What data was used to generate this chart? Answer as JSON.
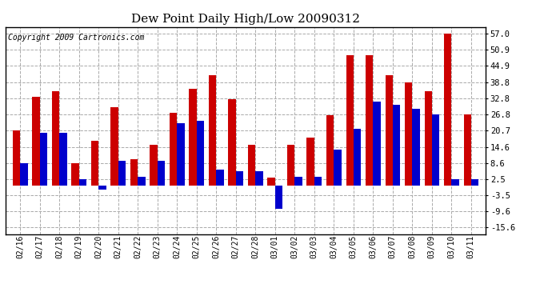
{
  "title": "Dew Point Daily High/Low 20090312",
  "copyright": "Copyright 2009 Cartronics.com",
  "yticks": [
    -15.6,
    -9.6,
    -3.5,
    2.5,
    8.6,
    14.6,
    20.7,
    26.8,
    32.8,
    38.8,
    44.9,
    50.9,
    57.0
  ],
  "ylim": [
    -18.0,
    59.5
  ],
  "dates": [
    "02/16",
    "02/17",
    "02/18",
    "02/19",
    "02/20",
    "02/21",
    "02/22",
    "02/23",
    "02/24",
    "02/25",
    "02/26",
    "02/27",
    "02/28",
    "03/01",
    "03/02",
    "03/03",
    "03/04",
    "03/05",
    "03/06",
    "03/07",
    "03/08",
    "03/09",
    "03/10",
    "03/11"
  ],
  "high": [
    20.7,
    33.5,
    35.5,
    8.6,
    17.0,
    29.5,
    10.0,
    15.5,
    27.5,
    36.5,
    41.5,
    32.5,
    15.5,
    3.0,
    15.5,
    18.0,
    26.5,
    49.0,
    49.0,
    41.5,
    38.8,
    35.5,
    57.0,
    26.8
  ],
  "low": [
    8.6,
    20.0,
    20.0,
    2.5,
    -1.5,
    9.5,
    3.5,
    9.5,
    23.5,
    24.5,
    6.0,
    5.5,
    5.5,
    -8.5,
    3.5,
    3.5,
    13.5,
    21.5,
    31.5,
    30.5,
    29.0,
    26.8,
    2.5,
    2.5
  ],
  "bar_color_high": "#cc0000",
  "bar_color_low": "#0000cc",
  "background_color": "#ffffff",
  "grid_color": "#aaaaaa",
  "bar_width": 0.38,
  "title_fontsize": 11,
  "copyright_fontsize": 7
}
